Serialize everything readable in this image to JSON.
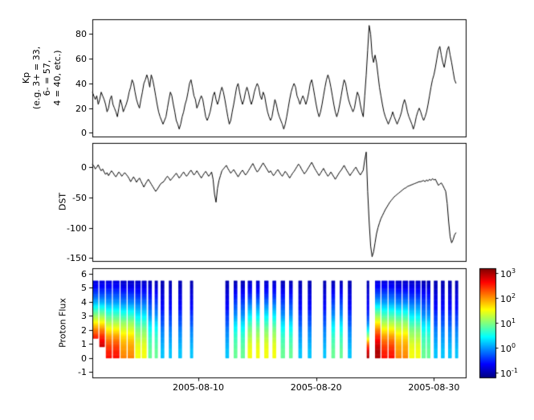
{
  "figure": {
    "background": "#ffffff",
    "line_color": "#000000"
  },
  "x_axis": {
    "range_days": [
      0,
      31.7
    ],
    "epoch": "2005-08-01",
    "ticks": [
      {
        "t": 9,
        "label": "2005-08-10"
      },
      {
        "t": 19,
        "label": "2005-08-20"
      },
      {
        "t": 29,
        "label": "2005-08-30"
      }
    ]
  },
  "panels": {
    "kp": {
      "ylabel_lines": [
        "Kp",
        "(e.g. 3+ = 33,",
        "6- = 57,",
        "4 = 40, etc.)"
      ],
      "ylim": [
        -3,
        92
      ],
      "yticks": [
        0,
        20,
        40,
        60,
        80
      ]
    },
    "dst": {
      "ylabel": "DST",
      "ylim": [
        -155,
        40
      ],
      "yticks": [
        0,
        -50,
        -100,
        -150
      ]
    },
    "proton": {
      "ylabel": "Proton Flux",
      "ylim": [
        -1.4,
        6.4
      ],
      "yticks": [
        -1,
        0,
        1,
        2,
        3,
        4,
        5,
        6
      ]
    }
  },
  "colorbar": {
    "log_range": [
      -1.2,
      3.2
    ],
    "tick_base": "10",
    "tick_exponents": [
      3,
      2,
      1,
      0,
      -1
    ]
  },
  "chart_data": [
    {
      "type": "line",
      "name": "Kp index",
      "ylabel": "Kp (e.g. 3+ = 33, 6- = 57, 4 = 40, etc.)",
      "ylim": [
        -3,
        92
      ],
      "x_start_day": 0,
      "x_step_days": 0.125,
      "values": [
        33,
        30,
        27,
        30,
        23,
        27,
        33,
        30,
        27,
        23,
        17,
        20,
        27,
        30,
        23,
        20,
        17,
        13,
        20,
        27,
        23,
        17,
        20,
        23,
        27,
        33,
        37,
        43,
        40,
        33,
        27,
        23,
        20,
        27,
        33,
        40,
        43,
        47,
        43,
        37,
        47,
        43,
        37,
        30,
        23,
        17,
        13,
        10,
        7,
        10,
        13,
        20,
        27,
        33,
        30,
        23,
        17,
        10,
        7,
        3,
        7,
        13,
        17,
        23,
        27,
        33,
        40,
        43,
        37,
        30,
        27,
        20,
        23,
        27,
        30,
        27,
        20,
        13,
        10,
        13,
        17,
        23,
        30,
        33,
        27,
        23,
        27,
        33,
        37,
        33,
        27,
        20,
        13,
        7,
        10,
        17,
        23,
        30,
        37,
        40,
        33,
        27,
        23,
        27,
        33,
        37,
        33,
        27,
        23,
        27,
        33,
        37,
        40,
        37,
        30,
        27,
        33,
        30,
        23,
        17,
        13,
        10,
        13,
        20,
        27,
        23,
        17,
        13,
        10,
        7,
        3,
        7,
        13,
        20,
        27,
        33,
        37,
        40,
        37,
        30,
        27,
        23,
        27,
        30,
        27,
        23,
        27,
        33,
        40,
        43,
        37,
        30,
        23,
        17,
        13,
        17,
        23,
        30,
        37,
        43,
        47,
        43,
        37,
        30,
        23,
        17,
        13,
        17,
        23,
        30,
        37,
        43,
        40,
        33,
        27,
        23,
        20,
        17,
        20,
        27,
        33,
        30,
        23,
        17,
        13,
        30,
        47,
        67,
        87,
        80,
        63,
        57,
        63,
        57,
        47,
        37,
        30,
        23,
        17,
        13,
        10,
        7,
        10,
        13,
        17,
        13,
        10,
        7,
        10,
        13,
        17,
        23,
        27,
        23,
        17,
        13,
        10,
        7,
        3,
        7,
        13,
        17,
        20,
        17,
        13,
        10,
        13,
        17,
        23,
        30,
        37,
        43,
        47,
        53,
        60,
        67,
        70,
        63,
        57,
        53,
        60,
        67,
        70,
        63,
        57,
        50,
        43,
        40
      ]
    },
    {
      "type": "line",
      "name": "DST",
      "ylabel": "DST",
      "ylim": [
        -155,
        40
      ],
      "x_start_day": 0,
      "x_step_days": 0.125,
      "values": [
        5,
        2,
        -3,
        0,
        4,
        -2,
        -6,
        -3,
        -8,
        -12,
        -9,
        -14,
        -10,
        -6,
        -9,
        -13,
        -16,
        -12,
        -8,
        -11,
        -15,
        -12,
        -9,
        -12,
        -15,
        -19,
        -24,
        -20,
        -16,
        -20,
        -25,
        -21,
        -18,
        -23,
        -28,
        -33,
        -28,
        -24,
        -20,
        -24,
        -28,
        -32,
        -36,
        -40,
        -37,
        -33,
        -29,
        -26,
        -25,
        -22,
        -18,
        -15,
        -18,
        -22,
        -19,
        -16,
        -13,
        -10,
        -14,
        -18,
        -15,
        -11,
        -8,
        -12,
        -15,
        -12,
        -8,
        -5,
        -9,
        -13,
        -10,
        -6,
        -10,
        -14,
        -18,
        -14,
        -10,
        -7,
        -11,
        -15,
        -12,
        -8,
        -20,
        -45,
        -58,
        -35,
        -22,
        -14,
        -6,
        -3,
        0,
        3,
        -2,
        -6,
        -10,
        -7,
        -4,
        -8,
        -12,
        -16,
        -12,
        -8,
        -5,
        -9,
        -13,
        -10,
        -6,
        -2,
        2,
        6,
        1,
        -4,
        -8,
        -5,
        -1,
        3,
        7,
        3,
        -1,
        -5,
        -9,
        -6,
        -10,
        -14,
        -11,
        -7,
        -4,
        -8,
        -12,
        -15,
        -11,
        -7,
        -10,
        -14,
        -18,
        -14,
        -10,
        -7,
        -3,
        1,
        5,
        2,
        -3,
        -7,
        -11,
        -8,
        -4,
        0,
        4,
        8,
        3,
        -2,
        -6,
        -10,
        -14,
        -10,
        -6,
        -2,
        -7,
        -11,
        -15,
        -12,
        -8,
        -12,
        -16,
        -20,
        -16,
        -12,
        -8,
        -5,
        -1,
        3,
        -2,
        -6,
        -10,
        -14,
        -10,
        -7,
        -3,
        0,
        -5,
        -9,
        -13,
        -9,
        -5,
        12,
        25,
        -40,
        -90,
        -130,
        -148,
        -140,
        -125,
        -110,
        -100,
        -92,
        -85,
        -80,
        -75,
        -70,
        -66,
        -62,
        -58,
        -55,
        -52,
        -49,
        -47,
        -45,
        -43,
        -41,
        -39,
        -37,
        -35,
        -34,
        -32,
        -31,
        -30,
        -29,
        -28,
        -27,
        -26,
        -25,
        -24,
        -24,
        -23,
        -22,
        -24,
        -21,
        -23,
        -20,
        -22,
        -19,
        -21,
        -20,
        -25,
        -30,
        -28,
        -26,
        -30,
        -35,
        -40,
        -60,
        -90,
        -115,
        -125,
        -120,
        -112,
        -108
      ]
    },
    {
      "type": "heatmap",
      "name": "Proton Flux spectrogram",
      "ylabel": "Proton Flux",
      "colormap": "jet",
      "value_log_range": [
        -1.2,
        3.2
      ],
      "y_levels": [
        0,
        0.5,
        1,
        1.5,
        2,
        2.5,
        3,
        3.5,
        4,
        4.5,
        5,
        5.5
      ],
      "profiles": {
        "hot1": [
          3.0,
          3.0,
          2.8,
          2.5,
          2.1,
          1.6,
          1.1,
          0.6,
          0.1,
          -0.3,
          -0.6,
          -0.8
        ],
        "hot2": [
          2.6,
          2.5,
          2.3,
          2.0,
          1.6,
          1.2,
          0.8,
          0.4,
          0.0,
          -0.3,
          -0.6,
          -0.8
        ],
        "warm": [
          2.1,
          2.0,
          1.9,
          1.7,
          1.4,
          1.1,
          0.7,
          0.3,
          -0.1,
          -0.4,
          -0.7,
          -0.9
        ],
        "green": [
          1.5,
          1.5,
          1.4,
          1.2,
          1.0,
          0.7,
          0.4,
          0.1,
          -0.2,
          -0.5,
          -0.7,
          -0.9
        ],
        "cool": [
          0.9,
          0.9,
          0.8,
          0.7,
          0.5,
          0.3,
          0.0,
          -0.2,
          -0.4,
          -0.6,
          -0.8,
          -1.0
        ],
        "cold": [
          0.2,
          0.2,
          0.1,
          0.0,
          -0.1,
          -0.3,
          -0.4,
          -0.6,
          -0.7,
          -0.8,
          -0.9,
          -1.0
        ],
        "redspike": [
          3.0,
          2.8,
          2.2,
          1.2,
          0.4,
          -0.1,
          -0.4,
          -0.6,
          -0.7,
          -0.8,
          -0.9,
          -1.0
        ]
      },
      "columns": [
        {
          "t": 0.0,
          "w": 0.5,
          "p": "hot1",
          "y0": 1.4
        },
        {
          "t": 0.6,
          "w": 0.45,
          "p": "hot1",
          "y0": 0.8
        },
        {
          "t": 1.15,
          "w": 0.5,
          "p": "hot2"
        },
        {
          "t": 1.75,
          "w": 0.55,
          "p": "hot2"
        },
        {
          "t": 2.4,
          "w": 0.5,
          "p": "warm"
        },
        {
          "t": 3.0,
          "w": 0.55,
          "p": "warm"
        },
        {
          "t": 3.65,
          "w": 0.45,
          "p": "green"
        },
        {
          "t": 4.2,
          "w": 0.4,
          "p": "green"
        },
        {
          "t": 4.75,
          "w": 0.3,
          "p": "cool"
        },
        {
          "t": 5.3,
          "w": 0.25,
          "p": "cool"
        },
        {
          "t": 5.8,
          "w": 0.3,
          "p": "cold"
        },
        {
          "t": 6.5,
          "w": 0.25,
          "p": "cold"
        },
        {
          "t": 7.3,
          "w": 0.3,
          "p": "cold"
        },
        {
          "t": 8.3,
          "w": 0.25,
          "p": "cold"
        },
        {
          "t": 11.3,
          "w": 0.3,
          "p": "cold"
        },
        {
          "t": 12.0,
          "w": 0.3,
          "p": "cool"
        },
        {
          "t": 12.6,
          "w": 0.35,
          "p": "cool"
        },
        {
          "t": 13.2,
          "w": 0.35,
          "p": "green"
        },
        {
          "t": 13.9,
          "w": 0.3,
          "p": "green"
        },
        {
          "t": 14.6,
          "w": 0.35,
          "p": "green"
        },
        {
          "t": 15.3,
          "w": 0.3,
          "p": "green"
        },
        {
          "t": 16.0,
          "w": 0.35,
          "p": "cool"
        },
        {
          "t": 16.7,
          "w": 0.3,
          "p": "cool"
        },
        {
          "t": 17.5,
          "w": 0.3,
          "p": "cold"
        },
        {
          "t": 18.3,
          "w": 0.3,
          "p": "cold"
        },
        {
          "t": 19.6,
          "w": 0.25,
          "p": "cold"
        },
        {
          "t": 20.3,
          "w": 0.3,
          "p": "cool"
        },
        {
          "t": 21.0,
          "w": 0.25,
          "p": "cool"
        },
        {
          "t": 21.7,
          "w": 0.3,
          "p": "cold"
        },
        {
          "t": 23.3,
          "w": 0.2,
          "p": "redspike"
        },
        {
          "t": 24.0,
          "w": 0.45,
          "p": "hot1"
        },
        {
          "t": 24.55,
          "w": 0.5,
          "p": "hot2"
        },
        {
          "t": 25.15,
          "w": 0.5,
          "p": "hot2"
        },
        {
          "t": 25.75,
          "w": 0.5,
          "p": "warm"
        },
        {
          "t": 26.35,
          "w": 0.45,
          "p": "warm"
        },
        {
          "t": 26.9,
          "w": 0.45,
          "p": "green"
        },
        {
          "t": 27.45,
          "w": 0.4,
          "p": "green"
        },
        {
          "t": 27.95,
          "w": 0.35,
          "p": "cool"
        },
        {
          "t": 28.4,
          "w": 0.3,
          "p": "cool"
        },
        {
          "t": 29.0,
          "w": 0.3,
          "p": "cold"
        },
        {
          "t": 29.6,
          "w": 0.3,
          "p": "cold"
        },
        {
          "t": 30.2,
          "w": 0.3,
          "p": "cold"
        },
        {
          "t": 30.8,
          "w": 0.25,
          "p": "cold"
        }
      ]
    }
  ]
}
